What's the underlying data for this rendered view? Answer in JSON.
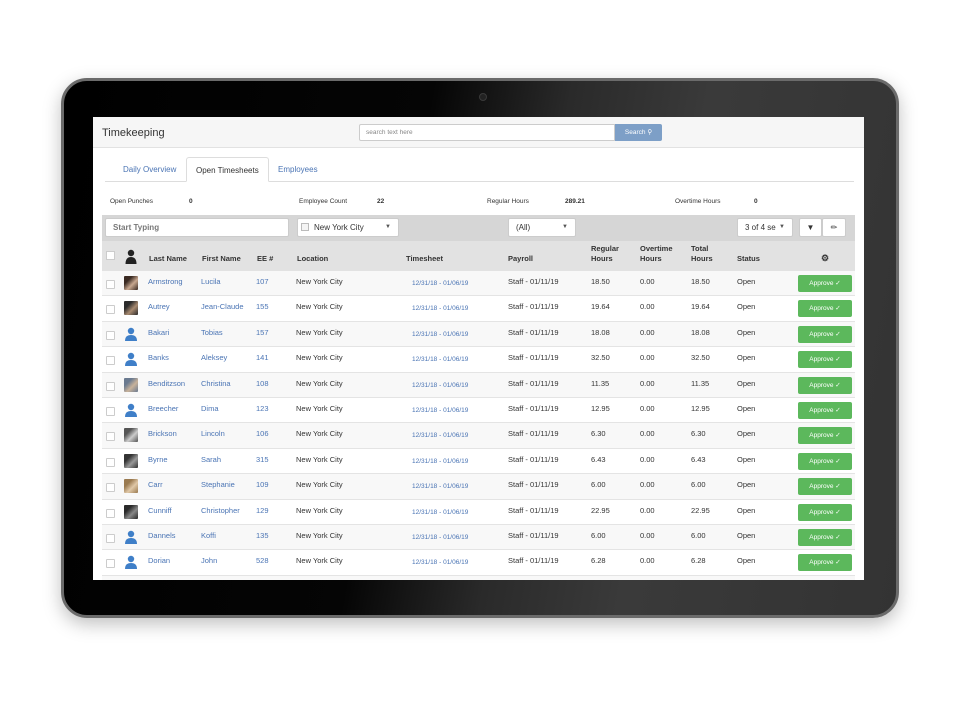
{
  "header": {
    "title": "Timekeeping",
    "search_placeholder": "search text here",
    "search_button": "Search"
  },
  "tabs": [
    {
      "label": "Daily Overview",
      "active": false
    },
    {
      "label": "Open Timesheets",
      "active": true
    },
    {
      "label": "Employees",
      "active": false
    }
  ],
  "stats": [
    {
      "label": "Open Punches",
      "value": "0"
    },
    {
      "label": "Employee Count",
      "value": "22"
    },
    {
      "label": "Regular Hours",
      "value": "289.21"
    },
    {
      "label": "Overtime Hours",
      "value": "0"
    }
  ],
  "filters": {
    "name_placeholder": "Start Typing",
    "location": "New York City",
    "payroll": "(All)",
    "columns": "3 of 4 se"
  },
  "columns": {
    "last": "Last Name",
    "first": "First Name",
    "ee": "EE #",
    "location": "Location",
    "timesheet": "Timesheet",
    "payroll": "Payroll",
    "regular": "Regular Hours",
    "overtime": "Overtime Hours",
    "total": "Total Hours",
    "status": "Status"
  },
  "approve_label": "Approve",
  "colors": {
    "link": "#4a74b4",
    "approve": "#5cb85c",
    "search": "#7d9fc7"
  },
  "rows": [
    {
      "avatar": "photo",
      "last": "Armstrong",
      "first": "Lucila",
      "ee": "107",
      "location": "New York City",
      "timesheet": "12/31/18 - 01/06/19",
      "payroll": "Staff - 01/11/19",
      "regular": "18.50",
      "overtime": "0.00",
      "total": "18.50",
      "status": "Open"
    },
    {
      "avatar": "photo",
      "last": "Autrey",
      "first": "Jean-Claude",
      "ee": "155",
      "location": "New York City",
      "timesheet": "12/31/18 - 01/06/19",
      "payroll": "Staff - 01/11/19",
      "regular": "19.64",
      "overtime": "0.00",
      "total": "19.64",
      "status": "Open"
    },
    {
      "avatar": "default",
      "last": "Bakari",
      "first": "Tobias",
      "ee": "157",
      "location": "New York City",
      "timesheet": "12/31/18 - 01/06/19",
      "payroll": "Staff - 01/11/19",
      "regular": "18.08",
      "overtime": "0.00",
      "total": "18.08",
      "status": "Open"
    },
    {
      "avatar": "default",
      "last": "Banks",
      "first": "Aleksey",
      "ee": "141",
      "location": "New York City",
      "timesheet": "12/31/18 - 01/06/19",
      "payroll": "Staff - 01/11/19",
      "regular": "32.50",
      "overtime": "0.00",
      "total": "32.50",
      "status": "Open"
    },
    {
      "avatar": "photo",
      "last": "Benditzson",
      "first": "Christina",
      "ee": "108",
      "location": "New York City",
      "timesheet": "12/31/18 - 01/06/19",
      "payroll": "Staff - 01/11/19",
      "regular": "11.35",
      "overtime": "0.00",
      "total": "11.35",
      "status": "Open"
    },
    {
      "avatar": "default",
      "last": "Breecher",
      "first": "Dima",
      "ee": "123",
      "location": "New York City",
      "timesheet": "12/31/18 - 01/06/19",
      "payroll": "Staff - 01/11/19",
      "regular": "12.95",
      "overtime": "0.00",
      "total": "12.95",
      "status": "Open"
    },
    {
      "avatar": "photo",
      "last": "Brickson",
      "first": "Lincoln",
      "ee": "106",
      "location": "New York City",
      "timesheet": "12/31/18 - 01/06/19",
      "payroll": "Staff - 01/11/19",
      "regular": "6.30",
      "overtime": "0.00",
      "total": "6.30",
      "status": "Open"
    },
    {
      "avatar": "photo",
      "last": "Byrne",
      "first": "Sarah",
      "ee": "315",
      "location": "New York City",
      "timesheet": "12/31/18 - 01/06/19",
      "payroll": "Staff - 01/11/19",
      "regular": "6.43",
      "overtime": "0.00",
      "total": "6.43",
      "status": "Open"
    },
    {
      "avatar": "photo",
      "last": "Carr",
      "first": "Stephanie",
      "ee": "109",
      "location": "New York City",
      "timesheet": "12/31/18 - 01/06/19",
      "payroll": "Staff - 01/11/19",
      "regular": "6.00",
      "overtime": "0.00",
      "total": "6.00",
      "status": "Open"
    },
    {
      "avatar": "photo",
      "last": "Cunniff",
      "first": "Christopher",
      "ee": "129",
      "location": "New York City",
      "timesheet": "12/31/18 - 01/06/19",
      "payroll": "Staff - 01/11/19",
      "regular": "22.95",
      "overtime": "0.00",
      "total": "22.95",
      "status": "Open"
    },
    {
      "avatar": "default",
      "last": "Dannels",
      "first": "Koffi",
      "ee": "135",
      "location": "New York City",
      "timesheet": "12/31/18 - 01/06/19",
      "payroll": "Staff - 01/11/19",
      "regular": "6.00",
      "overtime": "0.00",
      "total": "6.00",
      "status": "Open"
    },
    {
      "avatar": "default",
      "last": "Dorian",
      "first": "John",
      "ee": "528",
      "location": "New York City",
      "timesheet": "12/31/18 - 01/06/19",
      "payroll": "Staff - 01/11/19",
      "regular": "6.28",
      "overtime": "0.00",
      "total": "6.28",
      "status": "Open"
    }
  ]
}
